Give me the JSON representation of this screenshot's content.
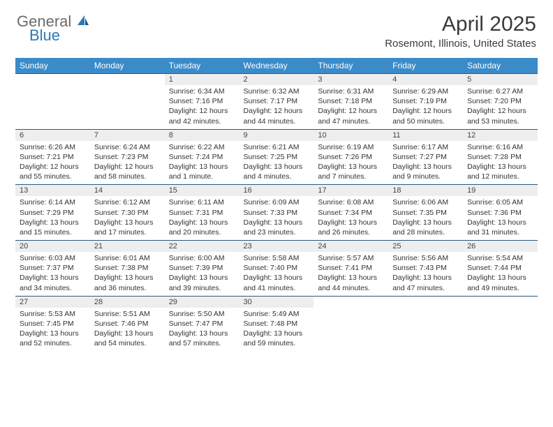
{
  "logo": {
    "text1": "General",
    "text2": "Blue"
  },
  "title": "April 2025",
  "location": "Rosemont, Illinois, United States",
  "colors": {
    "header_bg": "#3b8bc9",
    "header_text": "#ffffff",
    "daynum_bg": "#eeeeee",
    "row_border": "#2a5a80",
    "body_text": "#333333",
    "logo_blue": "#2a7ab8",
    "logo_gray": "#6b6b6b"
  },
  "weekdays": [
    "Sunday",
    "Monday",
    "Tuesday",
    "Wednesday",
    "Thursday",
    "Friday",
    "Saturday"
  ],
  "weeks": [
    [
      null,
      null,
      {
        "day": "1",
        "sunrise": "6:34 AM",
        "sunset": "7:16 PM",
        "daylight": "12 hours and 42 minutes."
      },
      {
        "day": "2",
        "sunrise": "6:32 AM",
        "sunset": "7:17 PM",
        "daylight": "12 hours and 44 minutes."
      },
      {
        "day": "3",
        "sunrise": "6:31 AM",
        "sunset": "7:18 PM",
        "daylight": "12 hours and 47 minutes."
      },
      {
        "day": "4",
        "sunrise": "6:29 AM",
        "sunset": "7:19 PM",
        "daylight": "12 hours and 50 minutes."
      },
      {
        "day": "5",
        "sunrise": "6:27 AM",
        "sunset": "7:20 PM",
        "daylight": "12 hours and 53 minutes."
      }
    ],
    [
      {
        "day": "6",
        "sunrise": "6:26 AM",
        "sunset": "7:21 PM",
        "daylight": "12 hours and 55 minutes."
      },
      {
        "day": "7",
        "sunrise": "6:24 AM",
        "sunset": "7:23 PM",
        "daylight": "12 hours and 58 minutes."
      },
      {
        "day": "8",
        "sunrise": "6:22 AM",
        "sunset": "7:24 PM",
        "daylight": "13 hours and 1 minute."
      },
      {
        "day": "9",
        "sunrise": "6:21 AM",
        "sunset": "7:25 PM",
        "daylight": "13 hours and 4 minutes."
      },
      {
        "day": "10",
        "sunrise": "6:19 AM",
        "sunset": "7:26 PM",
        "daylight": "13 hours and 7 minutes."
      },
      {
        "day": "11",
        "sunrise": "6:17 AM",
        "sunset": "7:27 PM",
        "daylight": "13 hours and 9 minutes."
      },
      {
        "day": "12",
        "sunrise": "6:16 AM",
        "sunset": "7:28 PM",
        "daylight": "13 hours and 12 minutes."
      }
    ],
    [
      {
        "day": "13",
        "sunrise": "6:14 AM",
        "sunset": "7:29 PM",
        "daylight": "13 hours and 15 minutes."
      },
      {
        "day": "14",
        "sunrise": "6:12 AM",
        "sunset": "7:30 PM",
        "daylight": "13 hours and 17 minutes."
      },
      {
        "day": "15",
        "sunrise": "6:11 AM",
        "sunset": "7:31 PM",
        "daylight": "13 hours and 20 minutes."
      },
      {
        "day": "16",
        "sunrise": "6:09 AM",
        "sunset": "7:33 PM",
        "daylight": "13 hours and 23 minutes."
      },
      {
        "day": "17",
        "sunrise": "6:08 AM",
        "sunset": "7:34 PM",
        "daylight": "13 hours and 26 minutes."
      },
      {
        "day": "18",
        "sunrise": "6:06 AM",
        "sunset": "7:35 PM",
        "daylight": "13 hours and 28 minutes."
      },
      {
        "day": "19",
        "sunrise": "6:05 AM",
        "sunset": "7:36 PM",
        "daylight": "13 hours and 31 minutes."
      }
    ],
    [
      {
        "day": "20",
        "sunrise": "6:03 AM",
        "sunset": "7:37 PM",
        "daylight": "13 hours and 34 minutes."
      },
      {
        "day": "21",
        "sunrise": "6:01 AM",
        "sunset": "7:38 PM",
        "daylight": "13 hours and 36 minutes."
      },
      {
        "day": "22",
        "sunrise": "6:00 AM",
        "sunset": "7:39 PM",
        "daylight": "13 hours and 39 minutes."
      },
      {
        "day": "23",
        "sunrise": "5:58 AM",
        "sunset": "7:40 PM",
        "daylight": "13 hours and 41 minutes."
      },
      {
        "day": "24",
        "sunrise": "5:57 AM",
        "sunset": "7:41 PM",
        "daylight": "13 hours and 44 minutes."
      },
      {
        "day": "25",
        "sunrise": "5:56 AM",
        "sunset": "7:43 PM",
        "daylight": "13 hours and 47 minutes."
      },
      {
        "day": "26",
        "sunrise": "5:54 AM",
        "sunset": "7:44 PM",
        "daylight": "13 hours and 49 minutes."
      }
    ],
    [
      {
        "day": "27",
        "sunrise": "5:53 AM",
        "sunset": "7:45 PM",
        "daylight": "13 hours and 52 minutes."
      },
      {
        "day": "28",
        "sunrise": "5:51 AM",
        "sunset": "7:46 PM",
        "daylight": "13 hours and 54 minutes."
      },
      {
        "day": "29",
        "sunrise": "5:50 AM",
        "sunset": "7:47 PM",
        "daylight": "13 hours and 57 minutes."
      },
      {
        "day": "30",
        "sunrise": "5:49 AM",
        "sunset": "7:48 PM",
        "daylight": "13 hours and 59 minutes."
      },
      null,
      null,
      null
    ]
  ],
  "labels": {
    "sunrise": "Sunrise:",
    "sunset": "Sunset:",
    "daylight": "Daylight:"
  }
}
